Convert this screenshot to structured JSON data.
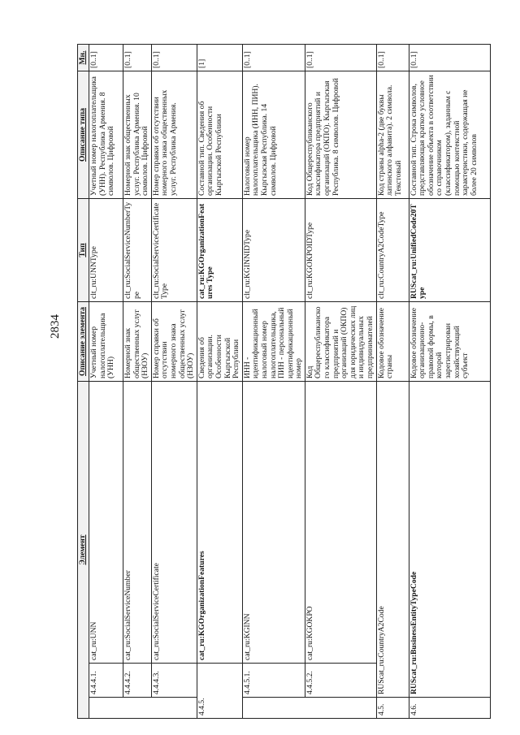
{
  "page_number": "2834",
  "headers": {
    "element": "Элемент",
    "element_desc": "Описание элемента",
    "type": "Тип",
    "type_desc": "Описание типа",
    "mult": "Мн."
  },
  "rows": [
    {
      "num": "4.4.4.1.",
      "name": "cat_ru:UNN",
      "desc": "Учетный номер налогоплательщика (УНН)",
      "type": "clt_ru:UNNType",
      "type_desc": "Учетный номер налогоплательщика (УНН). Республика Армения. 8 символов. Цифровой",
      "mult": "[0..1]"
    },
    {
      "num": "4.4.4.2.",
      "name": "cat_ru:SocialServiceNumber",
      "desc": "Номерной знак общественных услуг (НЗОУ)",
      "type": "clt_ru:SocialServiceNumberType",
      "type_desc": "Номерной знак общественных услуг. Республика Армения. 10 символов. Цифровой",
      "mult": "[0..1]"
    },
    {
      "num": "4.4.4.3.",
      "name": "cat_ru:SocialServiceCertificate",
      "desc": "Номер справки об отсутствии номерного знака общественных услуг (НЗОУ)",
      "type": "clt_ru:SocialServiceCertificateType",
      "type_desc": "Номер справки об отсутствии номерного знака общественных услуг. Республика Армения.",
      "mult": "[0..1]"
    },
    {
      "num": "4.4.5.",
      "name": "cat_ru:KGOrganizationFeatures",
      "desc": "Сведения об организации. Особенности Кыргызской Республики",
      "type": "cat_ru:KGOrganizationFeatures Type",
      "type_desc": "Составной тип. Сведения об организации. Особенности Кыргызской Республики",
      "mult": "[1]"
    },
    {
      "num": "4.4.5.1.",
      "name": "cat_ru:KGINN",
      "desc": "ИНН - идентификационный налоговый номер налогоплательщика, ПИН - персональный идентификационный номер",
      "type": "clt_ru:KGINNIDType",
      "type_desc": "Налоговый номер налогоплательщика (ИНН, ПИН). Кыргызская Республика. 14 символов. Цифровой",
      "mult": "[0..1]"
    },
    {
      "num": "4.4.5.2.",
      "name": "cat_ru:KGOKPO",
      "desc": "Код Общереспубликанского классификатора предприятий и организаций (ОКПО) для юридических лиц и индивидуальных предпринимателей",
      "type": "clt_ru:KGOKPOIDType",
      "type_desc": "Код Общереспубликанского классификатора предприятий и организаций (ОКПО). Кыргызская Республика. 8 символов. Цифровой",
      "mult": "[0..1]"
    },
    {
      "num": "4.5.",
      "name": "RUScat_ru:CountryA2Code",
      "desc": "Кодовое обозначение страны",
      "type": "clt_ru:CountryA2CodeType",
      "type_desc": "Код страны alpha-2 (две буквы латинского алфавита). 2 символа. Текстовый",
      "mult": "[0..1]"
    },
    {
      "num": "4.6.",
      "name": "RUScat_ru:BusinessEntityTypeCode",
      "desc": "Кодовое обозначение организационно-правовой формы, в которой зарегистрирован хозяйствующий субъект",
      "type": "RUScat_ru:UnifiedCode20Type",
      "type_desc": "Составной тип. Строка символов, представляющая краткое условное обозначение объекта в соответствии со справочником (классификатором), заданным с помощью контекстной характеристики, содержащая не более 20 символов",
      "mult": "[0..1]"
    }
  ]
}
